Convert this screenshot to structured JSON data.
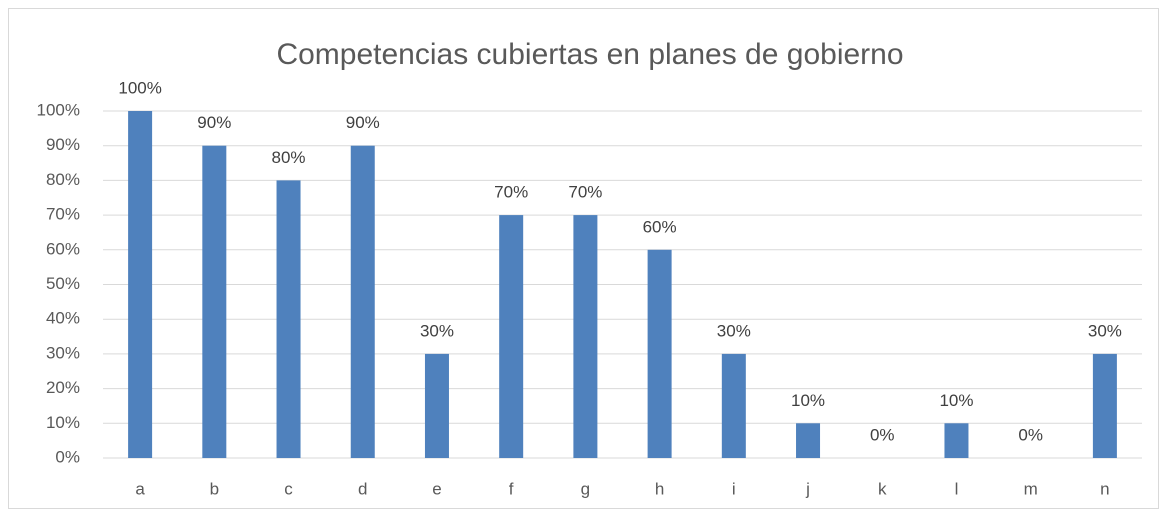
{
  "chart_data": {
    "type": "bar",
    "title": "Competencias cubiertas en planes de gobierno",
    "categories": [
      "a",
      "b",
      "c",
      "d",
      "e",
      "f",
      "g",
      "h",
      "i",
      "j",
      "k",
      "l",
      "m",
      "n"
    ],
    "values": [
      100,
      90,
      80,
      90,
      30,
      70,
      70,
      60,
      30,
      10,
      0,
      10,
      0,
      30
    ],
    "value_labels": [
      "100%",
      "90%",
      "80%",
      "90%",
      "30%",
      "70%",
      "70%",
      "60%",
      "30%",
      "10%",
      "0%",
      "10%",
      "0%",
      "30%"
    ],
    "color": "#4f81bd",
    "ylim": [
      0,
      100
    ],
    "yticks": [
      {
        "value": 0,
        "label": "0%"
      },
      {
        "value": 10,
        "label": "10%"
      },
      {
        "value": 20,
        "label": "20%"
      },
      {
        "value": 30,
        "label": "30%"
      },
      {
        "value": 40,
        "label": "40%"
      },
      {
        "value": 50,
        "label": "50%"
      },
      {
        "value": 60,
        "label": "60%"
      },
      {
        "value": 70,
        "label": "70%"
      },
      {
        "value": 80,
        "label": "80%"
      },
      {
        "value": 90,
        "label": "90%"
      },
      {
        "value": 100,
        "label": "100%"
      }
    ],
    "grid": true
  }
}
